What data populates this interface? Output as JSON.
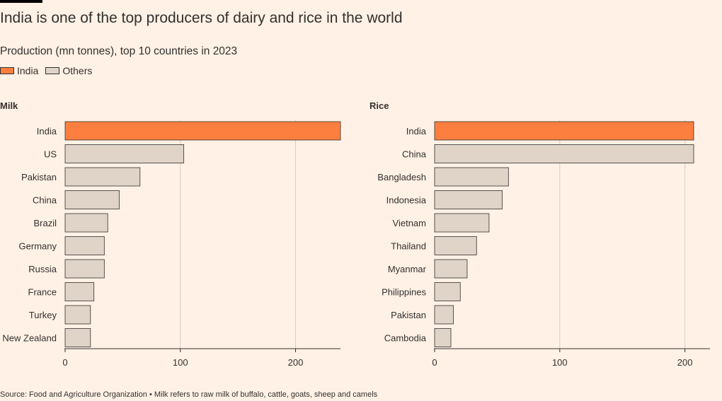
{
  "title": "India is one of the top producers of dairy and rice in the world",
  "subtitle": "Production (mn tonnes), top 10 countries in 2023",
  "legend": [
    {
      "label": "India",
      "color": "#fc7f40"
    },
    {
      "label": "Others",
      "color": "#e0d3c7"
    }
  ],
  "colors": {
    "highlight": "#fc7f40",
    "other": "#e0d3c7",
    "stroke": "#33302e",
    "grid": "#d9cbbf"
  },
  "source": "Source: Food and Agriculture Organization • Milk refers to raw milk of buffalo, cattle, goats, sheep and camels",
  "chart_data": [
    {
      "type": "bar",
      "orientation": "horizontal",
      "title": "Milk",
      "categories": [
        "India",
        "US",
        "Pakistan",
        "China",
        "Brazil",
        "Germany",
        "Russia",
        "France",
        "Turkey",
        "New Zealand"
      ],
      "values": [
        239,
        103,
        65,
        47,
        37,
        34,
        34,
        25,
        22,
        22
      ],
      "highlight": "India",
      "xlim": [
        0,
        239
      ],
      "xticks": [
        0,
        100,
        200
      ],
      "grid": true
    },
    {
      "type": "bar",
      "orientation": "horizontal",
      "title": "Rice",
      "categories": [
        "India",
        "China",
        "Bangladesh",
        "Indonesia",
        "Vietnam",
        "Thailand",
        "Myanmar",
        "Philippines",
        "Pakistan",
        "Cambodia"
      ],
      "values": [
        207,
        207,
        59,
        54,
        43.5,
        33.5,
        26,
        20.5,
        15,
        13
      ],
      "highlight": "India",
      "xlim": [
        0,
        220
      ],
      "xticks": [
        0,
        100,
        200
      ],
      "grid": true
    }
  ]
}
